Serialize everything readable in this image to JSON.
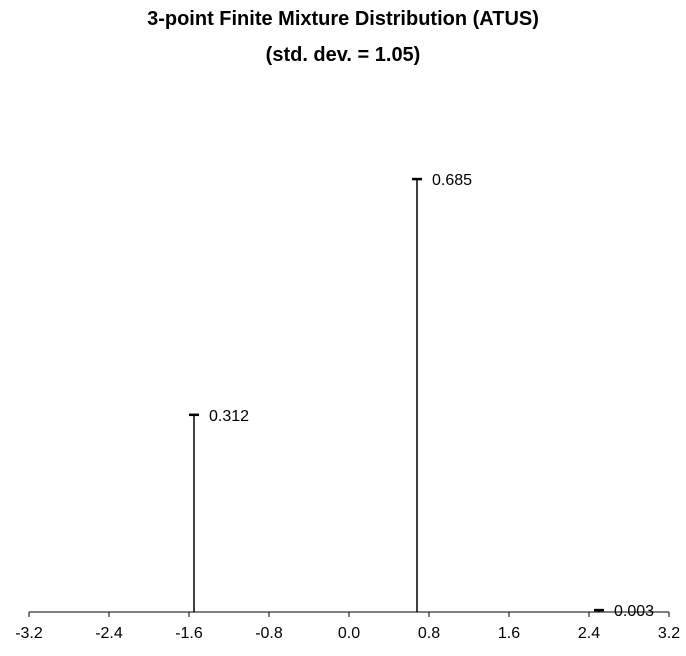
{
  "chart_data": {
    "type": "bar",
    "title": "3-point Finite Mixture Distribution (ATUS)",
    "subtitle": "(std. dev. = 1.05)",
    "xlabel": "",
    "ylabel": "",
    "xlim": [
      -3.2,
      3.2
    ],
    "ylim": [
      0,
      0.8
    ],
    "x_ticks": [
      "-3.2",
      "-2.4",
      "-1.6",
      "-0.8",
      "0.0",
      "0.8",
      "1.6",
      "2.4",
      "3.2"
    ],
    "points": [
      {
        "x": -1.55,
        "y": 0.312,
        "label": "0.312"
      },
      {
        "x": 0.68,
        "y": 0.685,
        "label": "0.685"
      },
      {
        "x": 2.5,
        "y": 0.003,
        "label": "0.003"
      }
    ],
    "grid": false,
    "legend": "none"
  }
}
